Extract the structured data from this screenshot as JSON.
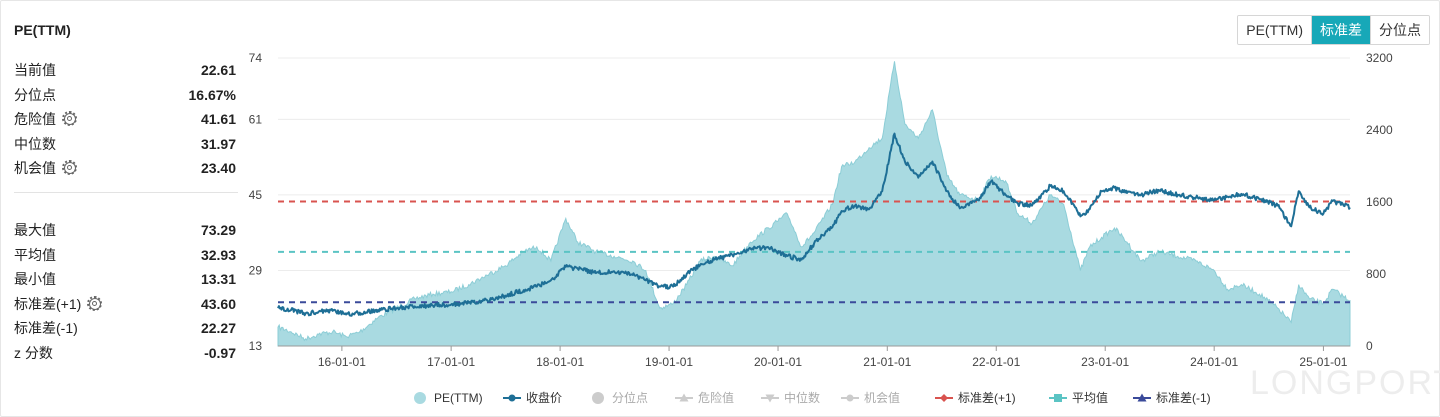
{
  "panel": {
    "title": "PE(TTM)",
    "stats_top": [
      {
        "label": "当前值",
        "value": "22.61",
        "gear": false
      },
      {
        "label": "分位点",
        "value": "16.67%",
        "gear": false
      },
      {
        "label": "危险值",
        "value": "41.61",
        "gear": true
      },
      {
        "label": "中位数",
        "value": "31.97",
        "gear": false
      },
      {
        "label": "机会值",
        "value": "23.40",
        "gear": true
      }
    ],
    "stats_bottom": [
      {
        "label": "最大值",
        "value": "73.29",
        "gear": false
      },
      {
        "label": "平均值",
        "value": "32.93",
        "gear": false
      },
      {
        "label": "最小值",
        "value": "13.31",
        "gear": false
      },
      {
        "label": "标准差(+1)",
        "value": "43.60",
        "gear": true
      },
      {
        "label": "标准差(-1)",
        "value": "22.27",
        "gear": false
      },
      {
        "label": "z 分数",
        "value": "-0.97",
        "gear": false
      }
    ]
  },
  "toggle": {
    "options": [
      "PE(TTM)",
      "标准差",
      "分位点"
    ],
    "active": "标准差"
  },
  "watermark": "LONGPORT",
  "colors": {
    "pe_fill": "#a9dae1",
    "pe_line": "#8ccdd6",
    "price_line": "#1e6f96",
    "std_plus": "#d9534f",
    "mean": "#5bc4c4",
    "std_minus": "#3a4a9a",
    "accent": "#17a8b8"
  },
  "chart_data": {
    "type": "area",
    "x_tick_labels": [
      "16-01-01",
      "17-01-01",
      "18-01-01",
      "19-01-01",
      "20-01-01",
      "21-01-01",
      "22-01-01",
      "23-01-01",
      "24-01-01",
      "25-01-01"
    ],
    "x_range": [
      "2015-06-01",
      "2025-03-31"
    ],
    "y_left": {
      "ticks": [
        13,
        29,
        45,
        61,
        74
      ],
      "range": [
        13,
        74
      ]
    },
    "y_right": {
      "ticks": [
        0,
        800,
        1600,
        2400,
        3200
      ],
      "range": [
        0,
        3200
      ]
    },
    "grid": true,
    "legend_position": "bottom",
    "reference_lines": [
      {
        "name": "标准差(+1)",
        "value": 43.6
      },
      {
        "name": "平均值",
        "value": 32.93
      },
      {
        "name": "标准差(-1)",
        "value": 22.27
      }
    ],
    "legend": [
      {
        "name": "PE(TTM)",
        "marker": "circle",
        "color": "#a9dae1",
        "active": true
      },
      {
        "name": "收盘价",
        "marker": "line-dot",
        "color": "#1e6f96",
        "active": true
      },
      {
        "name": "分位点",
        "marker": "circle",
        "color": "#cccccc",
        "active": false
      },
      {
        "name": "危险值",
        "marker": "triangle-up",
        "color": "#cccccc",
        "active": false
      },
      {
        "name": "中位数",
        "marker": "triangle-down",
        "color": "#cccccc",
        "active": false
      },
      {
        "name": "机会值",
        "marker": "line-dot",
        "color": "#cccccc",
        "active": false
      },
      {
        "name": "标准差(+1)",
        "marker": "diamond",
        "color": "#d9534f",
        "active": true
      },
      {
        "name": "平均值",
        "marker": "square",
        "color": "#5bc4c4",
        "active": true
      },
      {
        "name": "标准差(-1)",
        "marker": "triangle-up",
        "color": "#3a4a9a",
        "active": true
      }
    ],
    "series": [
      {
        "name": "PE(TTM)",
        "axis": "left",
        "points": [
          [
            "2015-06-01",
            17
          ],
          [
            "2015-07-15",
            16
          ],
          [
            "2015-09-01",
            14.5
          ],
          [
            "2015-10-15",
            15.5
          ],
          [
            "2015-12-01",
            16
          ],
          [
            "2016-01-15",
            15
          ],
          [
            "2016-03-01",
            16
          ],
          [
            "2016-05-01",
            19
          ],
          [
            "2016-07-01",
            21
          ],
          [
            "2016-09-01",
            23
          ],
          [
            "2016-11-01",
            24
          ],
          [
            "2017-01-01",
            24.5
          ],
          [
            "2017-03-01",
            26
          ],
          [
            "2017-05-01",
            28
          ],
          [
            "2017-07-01",
            30
          ],
          [
            "2017-09-01",
            33
          ],
          [
            "2017-10-15",
            34
          ],
          [
            "2017-12-01",
            31
          ],
          [
            "2018-01-20",
            40
          ],
          [
            "2018-03-01",
            35
          ],
          [
            "2018-05-01",
            33
          ],
          [
            "2018-07-01",
            32
          ],
          [
            "2018-09-01",
            31
          ],
          [
            "2018-10-15",
            29
          ],
          [
            "2018-12-01",
            21
          ],
          [
            "2019-01-15",
            22
          ],
          [
            "2019-03-01",
            26
          ],
          [
            "2019-04-15",
            31
          ],
          [
            "2019-06-01",
            32
          ],
          [
            "2019-08-01",
            30
          ],
          [
            "2019-10-01",
            35
          ],
          [
            "2019-12-01",
            38
          ],
          [
            "2020-02-01",
            41
          ],
          [
            "2020-03-20",
            34
          ],
          [
            "2020-05-01",
            37
          ],
          [
            "2020-07-01",
            43
          ],
          [
            "2020-08-01",
            51
          ],
          [
            "2020-09-15",
            52
          ],
          [
            "2020-11-01",
            55
          ],
          [
            "2020-12-15",
            57
          ],
          [
            "2021-01-25",
            73.3
          ],
          [
            "2021-03-01",
            60
          ],
          [
            "2021-04-15",
            57
          ],
          [
            "2021-06-01",
            63
          ],
          [
            "2021-07-20",
            49
          ],
          [
            "2021-09-01",
            45
          ],
          [
            "2021-11-01",
            44
          ],
          [
            "2021-12-15",
            49
          ],
          [
            "2022-02-01",
            48
          ],
          [
            "2022-03-15",
            41
          ],
          [
            "2022-05-01",
            39
          ],
          [
            "2022-07-01",
            45
          ],
          [
            "2022-08-15",
            43
          ],
          [
            "2022-10-10",
            29
          ],
          [
            "2022-11-10",
            34
          ],
          [
            "2022-12-20",
            36
          ],
          [
            "2023-02-01",
            38
          ],
          [
            "2023-03-15",
            35
          ],
          [
            "2023-05-01",
            31
          ],
          [
            "2023-07-01",
            33
          ],
          [
            "2023-09-01",
            32
          ],
          [
            "2023-11-01",
            31
          ],
          [
            "2024-01-01",
            29
          ],
          [
            "2024-02-15",
            25
          ],
          [
            "2024-04-01",
            26
          ],
          [
            "2024-06-01",
            24
          ],
          [
            "2024-08-01",
            21
          ],
          [
            "2024-09-15",
            18
          ],
          [
            "2024-10-10",
            26
          ],
          [
            "2024-11-15",
            23
          ],
          [
            "2025-01-01",
            22
          ],
          [
            "2025-02-01",
            25
          ],
          [
            "2025-03-31",
            22.6
          ]
        ]
      },
      {
        "name": "收盘价",
        "axis": "right",
        "points": [
          [
            "2015-06-01",
            420
          ],
          [
            "2015-07-15",
            400
          ],
          [
            "2015-09-01",
            360
          ],
          [
            "2015-10-15",
            380
          ],
          [
            "2015-12-01",
            390
          ],
          [
            "2016-01-15",
            350
          ],
          [
            "2016-03-01",
            370
          ],
          [
            "2016-05-01",
            400
          ],
          [
            "2016-07-01",
            420
          ],
          [
            "2016-09-01",
            440
          ],
          [
            "2016-11-01",
            450
          ],
          [
            "2017-01-01",
            460
          ],
          [
            "2017-03-01",
            480
          ],
          [
            "2017-05-01",
            510
          ],
          [
            "2017-07-01",
            560
          ],
          [
            "2017-09-01",
            620
          ],
          [
            "2017-10-15",
            660
          ],
          [
            "2017-12-01",
            730
          ],
          [
            "2018-01-20",
            880
          ],
          [
            "2018-03-01",
            860
          ],
          [
            "2018-05-01",
            810
          ],
          [
            "2018-07-01",
            830
          ],
          [
            "2018-09-01",
            790
          ],
          [
            "2018-10-15",
            730
          ],
          [
            "2018-12-01",
            660
          ],
          [
            "2019-01-15",
            660
          ],
          [
            "2019-03-01",
            800
          ],
          [
            "2019-04-15",
            900
          ],
          [
            "2019-06-01",
            960
          ],
          [
            "2019-08-01",
            1010
          ],
          [
            "2019-10-01",
            1080
          ],
          [
            "2019-12-01",
            1090
          ],
          [
            "2020-02-01",
            1000
          ],
          [
            "2020-03-20",
            960
          ],
          [
            "2020-05-01",
            1140
          ],
          [
            "2020-07-01",
            1320
          ],
          [
            "2020-08-01",
            1500
          ],
          [
            "2020-09-15",
            1560
          ],
          [
            "2020-11-01",
            1520
          ],
          [
            "2020-12-15",
            1720
          ],
          [
            "2021-01-25",
            2360
          ],
          [
            "2021-03-01",
            2050
          ],
          [
            "2021-04-15",
            1870
          ],
          [
            "2021-06-01",
            2050
          ],
          [
            "2021-07-20",
            1720
          ],
          [
            "2021-09-01",
            1530
          ],
          [
            "2021-11-01",
            1620
          ],
          [
            "2021-12-15",
            1830
          ],
          [
            "2022-02-01",
            1680
          ],
          [
            "2022-03-15",
            1580
          ],
          [
            "2022-05-01",
            1560
          ],
          [
            "2022-07-01",
            1780
          ],
          [
            "2022-08-15",
            1720
          ],
          [
            "2022-10-10",
            1440
          ],
          [
            "2022-11-10",
            1520
          ],
          [
            "2022-12-20",
            1720
          ],
          [
            "2023-02-01",
            1760
          ],
          [
            "2023-03-15",
            1700
          ],
          [
            "2023-05-01",
            1680
          ],
          [
            "2023-07-01",
            1730
          ],
          [
            "2023-09-01",
            1680
          ],
          [
            "2023-11-01",
            1650
          ],
          [
            "2024-01-01",
            1620
          ],
          [
            "2024-02-15",
            1660
          ],
          [
            "2024-04-01",
            1690
          ],
          [
            "2024-06-01",
            1630
          ],
          [
            "2024-08-01",
            1560
          ],
          [
            "2024-09-15",
            1330
          ],
          [
            "2024-10-10",
            1720
          ],
          [
            "2024-11-15",
            1540
          ],
          [
            "2025-01-01",
            1470
          ],
          [
            "2025-02-01",
            1610
          ],
          [
            "2025-03-31",
            1540
          ]
        ]
      }
    ]
  }
}
